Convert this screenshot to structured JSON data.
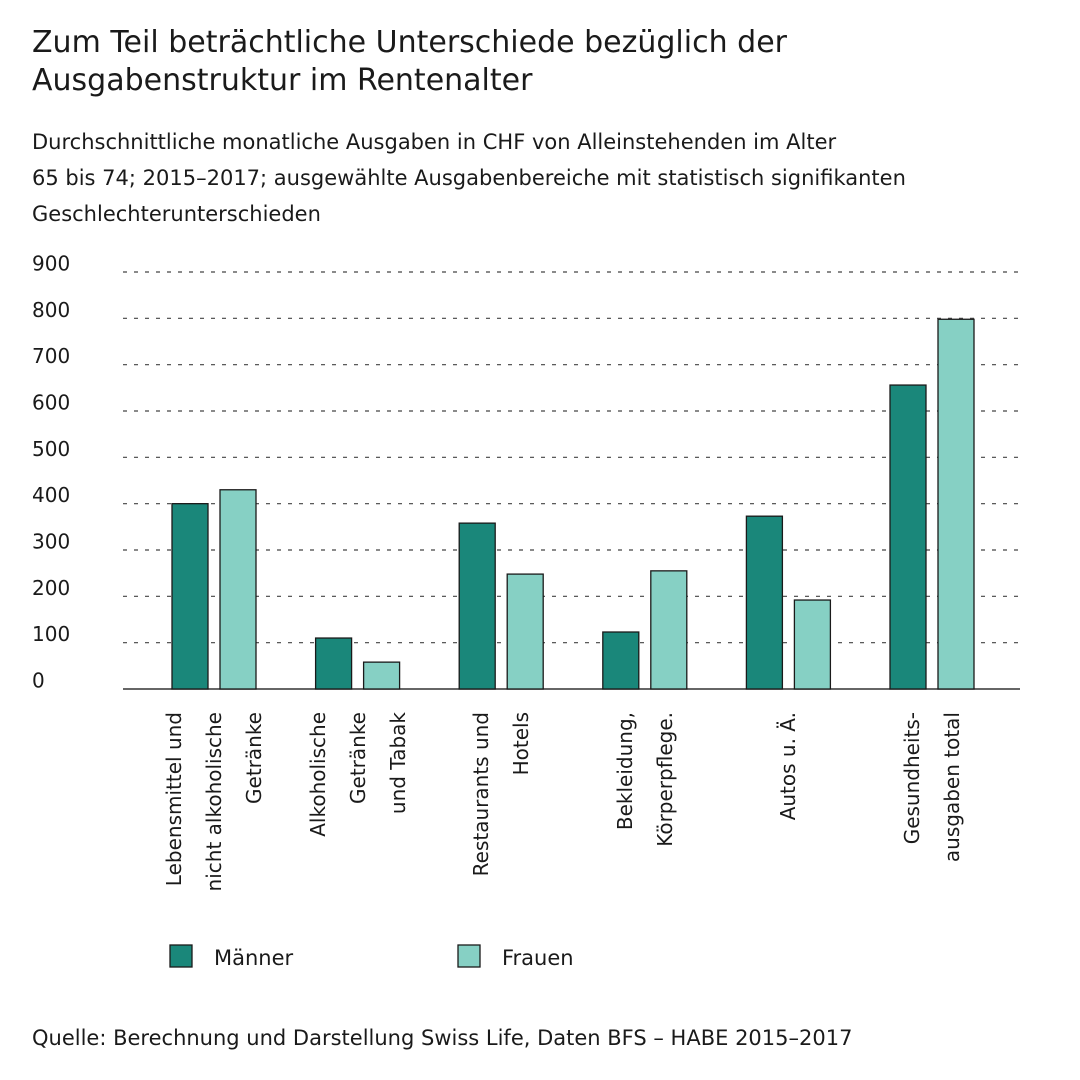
{
  "chart_data": {
    "type": "bar",
    "title": "Zum Teil beträchtliche Unterschiede bezüglich der\nAusgabenstruktur im Rentenalter",
    "subtitle": "Durchschnittliche monatliche Ausgaben in CHF von Alleinstehenden im Alter\n65 bis 74; 2015–2017; ausgewählte Ausgabenbereiche mit statistisch signifikanten\nGeschlechterunterschieden",
    "categories": [
      "Lebensmittel und\nnicht alkoholische\nGetränke",
      "Alkoholische\nGetränke\nund Tabak",
      "Restaurants und\nHotels",
      "Bekleidung,\nKörperpflege.",
      "Autos u. Ä.",
      "Gesundheits-\nausgaben total"
    ],
    "series": [
      {
        "name": "Männer",
        "color": "#1a877a",
        "values": [
          400,
          110,
          358,
          123,
          373,
          656
        ]
      },
      {
        "name": "Frauen",
        "color": "#86d0c4",
        "values": [
          430,
          58,
          248,
          255,
          192,
          798
        ]
      }
    ],
    "ylim": [
      0,
      900
    ],
    "yticks": [
      0,
      100,
      200,
      300,
      400,
      500,
      600,
      700,
      800,
      900
    ],
    "grid": true,
    "source": "Quelle: Berechnung und Darstellung Swiss Life, Daten BFS – HABE 2015–2017"
  }
}
